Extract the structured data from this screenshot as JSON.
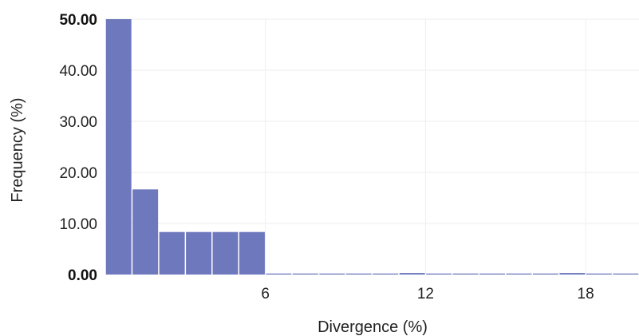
{
  "chart_data": {
    "type": "bar",
    "xlabel": "Divergence (%)",
    "ylabel": "Frequency (%)",
    "xlim": [
      0,
      20
    ],
    "ylim": [
      0,
      50
    ],
    "bar_width": 1,
    "x_ticks": [
      {
        "value": 6,
        "label": "6"
      },
      {
        "value": 12,
        "label": "12"
      },
      {
        "value": 18,
        "label": "18"
      }
    ],
    "y_ticks": [
      {
        "value": 0,
        "label": "0.00",
        "bold": true
      },
      {
        "value": 10,
        "label": "10.00",
        "bold": false
      },
      {
        "value": 20,
        "label": "20.00",
        "bold": false
      },
      {
        "value": 30,
        "label": "30.00",
        "bold": false
      },
      {
        "value": 40,
        "label": "40.00",
        "bold": false
      },
      {
        "value": 50,
        "label": "50.00",
        "bold": true
      }
    ],
    "x": [
      0,
      1,
      2,
      3,
      4,
      5,
      6,
      7,
      8,
      9,
      10,
      11,
      12,
      13,
      14,
      15,
      16,
      17,
      18,
      19
    ],
    "values": [
      50.0,
      16.67,
      8.33,
      8.33,
      8.33,
      8.33,
      0.2,
      0.2,
      0.2,
      0.2,
      0.2,
      0.3,
      0.2,
      0.2,
      0.2,
      0.2,
      0.2,
      0.3,
      0.2,
      0.2
    ],
    "grid": true,
    "bar_color": "#6e78bd"
  }
}
